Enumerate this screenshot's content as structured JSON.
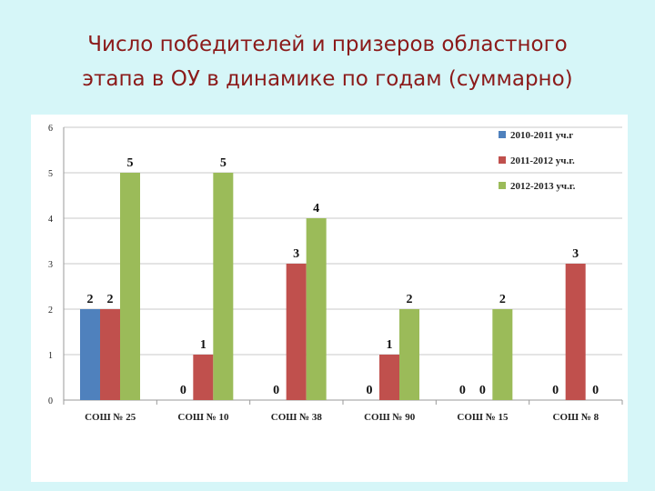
{
  "title": {
    "line1": "Число победителей и призеров областного",
    "line2": "этапа в ОУ в динамике по годам (суммарно)"
  },
  "chart_data": {
    "type": "bar",
    "categories": [
      "СОШ № 25",
      "СОШ № 10",
      "СОШ № 38",
      "СОШ № 90",
      "СОШ № 15",
      "СОШ № 8"
    ],
    "series": [
      {
        "name": "2010-2011 уч.г",
        "color": "#4f81bd",
        "values": [
          2,
          0,
          0,
          0,
          0,
          0
        ]
      },
      {
        "name": "2011-2012 уч.г.",
        "color": "#c0504d",
        "values": [
          2,
          1,
          3,
          1,
          0,
          3
        ]
      },
      {
        "name": "2012-2013 уч.г.",
        "color": "#9bbb59",
        "values": [
          5,
          5,
          4,
          2,
          2,
          0
        ]
      }
    ],
    "ylim": [
      0,
      6
    ],
    "yticks": [
      0,
      1,
      2,
      3,
      4,
      5,
      6
    ],
    "grid": true,
    "legend": "top-right",
    "data_labels": true
  }
}
